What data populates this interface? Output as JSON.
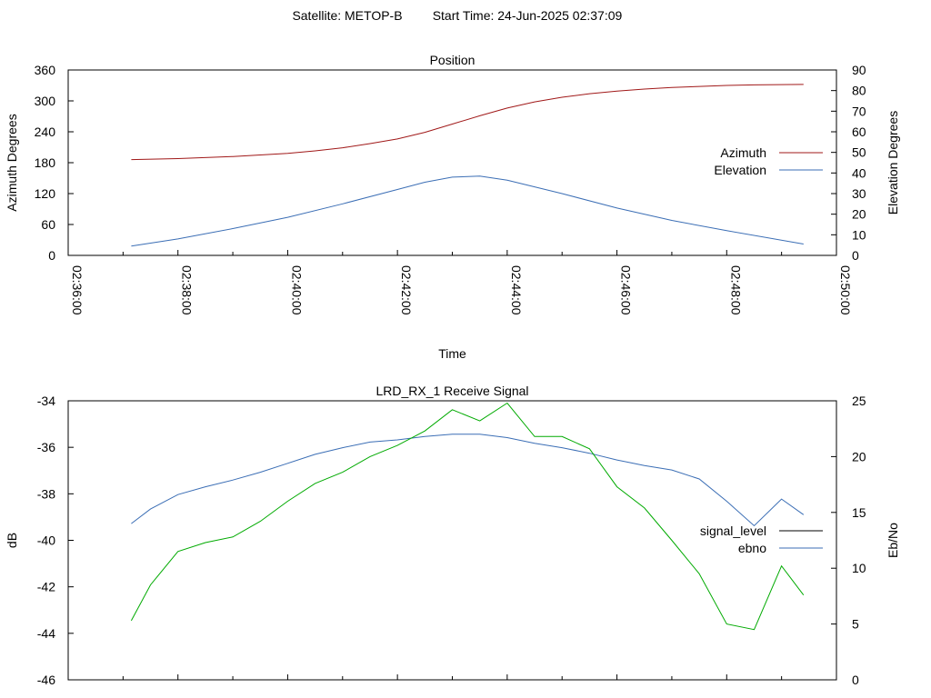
{
  "header": {
    "satellite_label": "Satellite: METOP-B",
    "start_time_label": "Start Time: 24-Jun-2025 02:37:09"
  },
  "chart_data": [
    {
      "type": "line",
      "title": "Position",
      "xlabel": "Time",
      "ylabel": "Azimuth Degrees",
      "y2label": "Elevation Degrees",
      "x_ticks": [
        "02:36:00",
        "02:38:00",
        "02:40:00",
        "02:42:00",
        "02:44:00",
        "02:46:00",
        "02:48:00",
        "02:50:00"
      ],
      "xlim_minutes": [
        0,
        14
      ],
      "ylim": [
        0,
        360
      ],
      "y_ticks": [
        "0",
        "60",
        "120",
        "180",
        "240",
        "300",
        "360"
      ],
      "y2lim": [
        0,
        90
      ],
      "y2_ticks": [
        "0",
        "10",
        "20",
        "30",
        "40",
        "50",
        "60",
        "70",
        "80",
        "90"
      ],
      "legend_position": "right",
      "series": [
        {
          "name": "Azimuth",
          "axis": "y",
          "color": "#a01818",
          "x": [
            1.15,
            2,
            3,
            4,
            4.5,
            5,
            5.5,
            6,
            6.5,
            7,
            7.5,
            8,
            8.5,
            9,
            9.5,
            10,
            10.5,
            11,
            11.5,
            12,
            12.5,
            13.4
          ],
          "y": [
            186,
            188,
            192,
            198,
            203,
            209,
            217,
            226,
            239,
            255,
            271,
            286,
            298,
            307,
            314,
            319,
            323,
            326,
            328,
            330,
            331,
            332
          ]
        },
        {
          "name": "Elevation",
          "axis": "y2",
          "color": "#3b6eb5",
          "x": [
            1.15,
            2,
            3,
            4,
            5,
            6,
            6.5,
            7,
            7.5,
            8,
            9,
            10,
            11,
            12,
            13.4
          ],
          "y": [
            4.5,
            8,
            13,
            18.5,
            25,
            32,
            35.5,
            38,
            38.5,
            36.5,
            30,
            23,
            17,
            12,
            5.5
          ]
        }
      ]
    },
    {
      "type": "line",
      "title": "LRD_RX_1 Receive Signal",
      "ylabel": "dB",
      "y2label": "Eb/No",
      "xlim_minutes": [
        0,
        14
      ],
      "ylim": [
        -46,
        -34
      ],
      "y_ticks": [
        "-46",
        "-44",
        "-42",
        "-40",
        "-38",
        "-36",
        "-34"
      ],
      "y2lim": [
        0,
        25
      ],
      "y2_ticks": [
        "0",
        "5",
        "10",
        "15",
        "20",
        "25"
      ],
      "legend_position": "right",
      "series": [
        {
          "name": "signal_level",
          "axis": "y",
          "color": "#000000",
          "x": [],
          "y": []
        },
        {
          "name": "ebno",
          "axis": "y2",
          "color": "#3b6eb5",
          "x": [
            1.15,
            1.5,
            2,
            2.5,
            3,
            3.5,
            4,
            4.5,
            5,
            5.5,
            6,
            6.5,
            7,
            7.5,
            8,
            8.5,
            9,
            9.5,
            10,
            10.5,
            11,
            11.5,
            12,
            12.5,
            13,
            13.4
          ],
          "y": [
            14,
            15.3,
            16.6,
            17.3,
            17.9,
            18.6,
            19.4,
            20.2,
            20.8,
            21.3,
            21.5,
            21.8,
            22,
            22,
            21.7,
            21.2,
            20.8,
            20.3,
            19.7,
            19.2,
            18.8,
            18,
            16,
            13.8,
            16.2,
            14.8
          ]
        },
        {
          "name": "",
          "axis": "y2",
          "color": "#00aa00",
          "x": [
            1.15,
            1.5,
            2,
            2.5,
            3,
            3.5,
            4,
            4.5,
            5,
            5.5,
            6,
            6.5,
            7,
            7.5,
            8,
            8.5,
            9,
            9.5,
            10,
            10.5,
            11,
            11.5,
            12,
            12.5,
            13,
            13.4
          ],
          "y": [
            5.3,
            8.5,
            11.5,
            12.3,
            12.8,
            14.2,
            16,
            17.6,
            18.6,
            20,
            21,
            22.3,
            24.2,
            23.2,
            24.8,
            21.8,
            21.8,
            20.7,
            17.3,
            15.4,
            12.5,
            9.5,
            5,
            4.5,
            10.2,
            7.6
          ]
        }
      ]
    }
  ]
}
